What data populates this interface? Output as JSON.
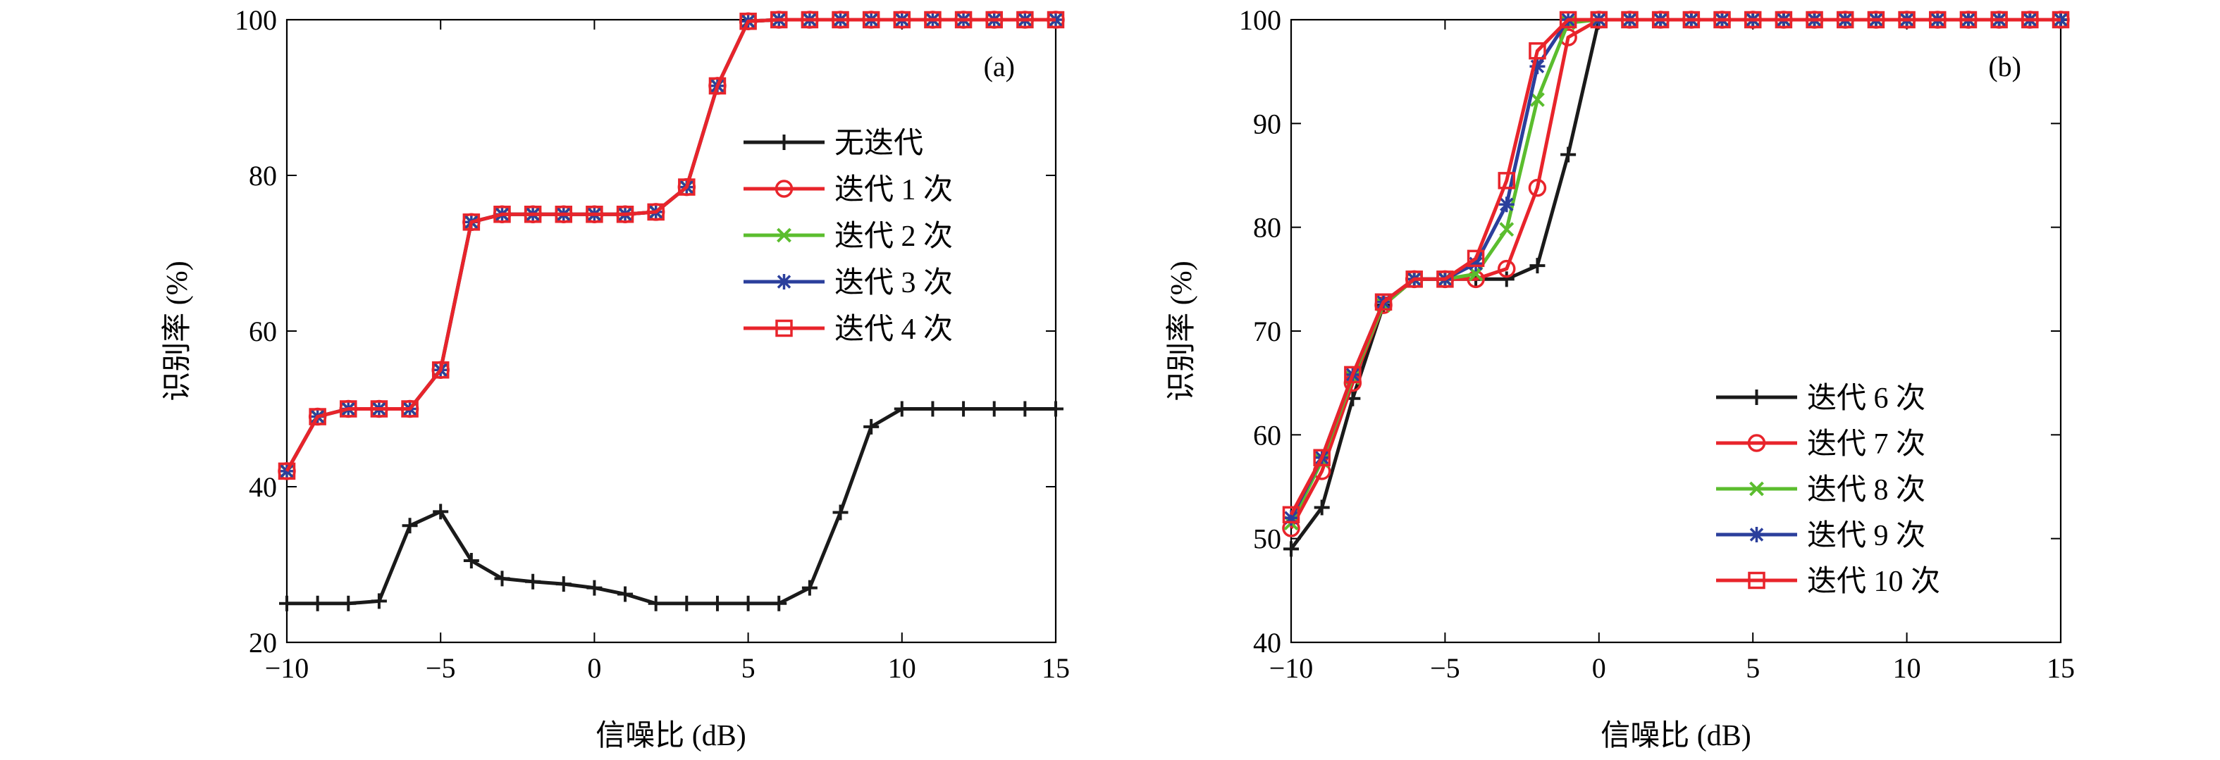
{
  "chart_data": [
    {
      "type": "line",
      "panel_label": "(a)",
      "xlabel": "信噪比 (dB)",
      "ylabel": "识别率 (%)",
      "xlim": [
        -10,
        15
      ],
      "ylim": [
        20,
        100
      ],
      "xticks": [
        -10,
        -5,
        0,
        5,
        10,
        15
      ],
      "yticks": [
        20,
        40,
        60,
        80,
        100
      ],
      "xtick_labels": [
        "−10",
        "−5",
        "0",
        "5",
        "10",
        "15"
      ],
      "ytick_labels": [
        "20",
        "40",
        "60",
        "80",
        "100"
      ],
      "grid": false,
      "legend_position": "top-right",
      "x": [
        -10,
        -9,
        -8,
        -7,
        -6,
        -5,
        -4,
        -3,
        -2,
        -1,
        0,
        1,
        2,
        3,
        4,
        5,
        6,
        7,
        8,
        9,
        10,
        11,
        12,
        13,
        14,
        15
      ],
      "series": [
        {
          "name": "无迭代",
          "color": "#1a1a1a",
          "marker": "plus",
          "values": [
            25,
            25,
            25,
            25.3,
            35,
            36.8,
            30.5,
            28.2,
            27.8,
            27.5,
            27,
            26.2,
            25,
            25,
            25,
            25,
            25,
            27,
            36.7,
            47.7,
            50,
            50,
            50,
            50,
            50,
            50
          ]
        },
        {
          "name": "迭代 1 次",
          "color": "#e8242b",
          "marker": "circle",
          "values": [
            42,
            49,
            50,
            50,
            50,
            55,
            74,
            75,
            75,
            75,
            75,
            75,
            75.3,
            78.5,
            91.5,
            99.8,
            100,
            100,
            100,
            100,
            100,
            100,
            100,
            100,
            100,
            100
          ]
        },
        {
          "name": "迭代 2 次",
          "color": "#5bbd2e",
          "marker": "cross",
          "values": [
            42,
            49,
            50,
            50,
            50,
            55,
            74,
            75,
            75,
            75,
            75,
            75,
            75.3,
            78.5,
            91.5,
            99.8,
            100,
            100,
            100,
            100,
            100,
            100,
            100,
            100,
            100,
            100
          ]
        },
        {
          "name": "迭代 3 次",
          "color": "#2b3f9c",
          "marker": "star",
          "values": [
            42,
            49,
            50,
            50,
            50,
            55,
            74,
            75,
            75,
            75,
            75,
            75,
            75.3,
            78.5,
            91.5,
            99.8,
            100,
            100,
            100,
            100,
            100,
            100,
            100,
            100,
            100,
            100
          ]
        },
        {
          "name": "迭代 4 次",
          "color": "#e8242b",
          "marker": "square",
          "values": [
            42,
            49,
            50,
            50,
            50,
            55,
            74,
            75,
            75,
            75,
            75,
            75,
            75.3,
            78.5,
            91.5,
            99.8,
            100,
            100,
            100,
            100,
            100,
            100,
            100,
            100,
            100,
            100
          ]
        }
      ]
    },
    {
      "type": "line",
      "panel_label": "(b)",
      "xlabel": "信噪比 (dB)",
      "ylabel": "识别率 (%)",
      "xlim": [
        -10,
        15
      ],
      "ylim": [
        40,
        100
      ],
      "xticks": [
        -10,
        -5,
        0,
        5,
        10,
        15
      ],
      "yticks": [
        40,
        50,
        60,
        70,
        80,
        90,
        100
      ],
      "xtick_labels": [
        "−10",
        "−5",
        "0",
        "5",
        "10",
        "15"
      ],
      "ytick_labels": [
        "40",
        "50",
        "60",
        "70",
        "80",
        "90",
        "100"
      ],
      "grid": false,
      "legend_position": "bottom-right",
      "x": [
        -10,
        -9,
        -8,
        -7,
        -6,
        -5,
        -4,
        -3,
        -2,
        -1,
        0,
        1,
        2,
        3,
        4,
        5,
        6,
        7,
        8,
        9,
        10,
        11,
        12,
        13,
        14,
        15
      ],
      "series": [
        {
          "name": "迭代 6 次",
          "color": "#1a1a1a",
          "marker": "plus",
          "values": [
            49,
            53,
            63.5,
            72.5,
            75,
            75,
            75,
            75,
            76.3,
            87,
            100,
            100,
            100,
            100,
            100,
            100,
            100,
            100,
            100,
            100,
            100,
            100,
            100,
            100,
            100,
            100
          ]
        },
        {
          "name": "迭代 7 次",
          "color": "#e8242b",
          "marker": "circle",
          "values": [
            51,
            56.5,
            65,
            72.5,
            75,
            75,
            75,
            76,
            83.8,
            98.3,
            100,
            100,
            100,
            100,
            100,
            100,
            100,
            100,
            100,
            100,
            100,
            100,
            100,
            100,
            100,
            100
          ]
        },
        {
          "name": "迭代 8 次",
          "color": "#5bbd2e",
          "marker": "cross",
          "values": [
            51.5,
            57.5,
            65.5,
            72.5,
            75,
            75,
            75.5,
            79.8,
            92.3,
            99.7,
            100,
            100,
            100,
            100,
            100,
            100,
            100,
            100,
            100,
            100,
            100,
            100,
            100,
            100,
            100,
            100
          ]
        },
        {
          "name": "迭代 9 次",
          "color": "#2b3f9c",
          "marker": "star",
          "values": [
            52,
            57.8,
            65.8,
            72.8,
            75,
            75,
            76.5,
            82.2,
            95.5,
            100,
            100,
            100,
            100,
            100,
            100,
            100,
            100,
            100,
            100,
            100,
            100,
            100,
            100,
            100,
            100,
            100
          ]
        },
        {
          "name": "迭代 10 次",
          "color": "#e8242b",
          "marker": "square",
          "values": [
            52.3,
            57.8,
            65.8,
            72.8,
            75,
            75,
            77,
            84.5,
            97,
            100,
            100,
            100,
            100,
            100,
            100,
            100,
            100,
            100,
            100,
            100,
            100,
            100,
            100,
            100,
            100,
            100
          ]
        }
      ]
    }
  ]
}
